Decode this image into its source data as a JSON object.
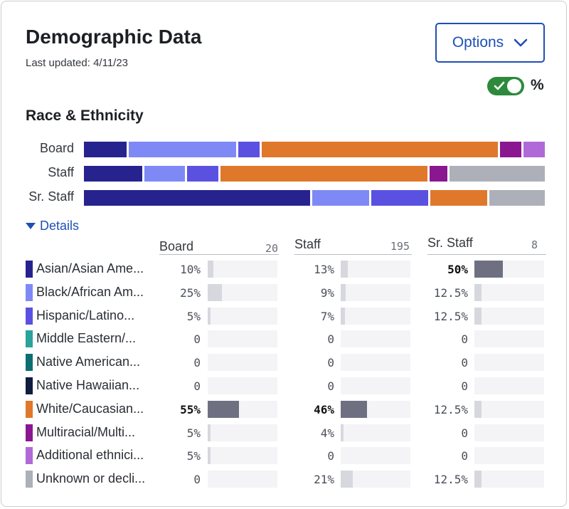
{
  "header": {
    "title": "Demographic Data",
    "last_updated": "Last updated: 4/11/23",
    "options_label": "Options",
    "percent_label": "%",
    "toggle_on": true
  },
  "section": {
    "title": "Race & Ethnicity",
    "details_label": "Details"
  },
  "colors": {
    "Asian": "#26238f",
    "Black": "#7f89f6",
    "Hispanic": "#5b51e1",
    "MiddleEastern": "#2aa39a",
    "NativeAmerican": "#0d6e72",
    "NativeHawaiian": "#101d3e",
    "White": "#e0782b",
    "Multiracial": "#8b1790",
    "Additional": "#b06ad8",
    "Unknown": "#aeb0b9",
    "accent": "#1f4fb5",
    "toggle": "#2d8a3c"
  },
  "chart_data": {
    "type": "table",
    "groups": [
      {
        "name": "Board",
        "count": "20"
      },
      {
        "name": "Staff",
        "count": "195"
      },
      {
        "name": "Sr. Staff",
        "count": "8"
      }
    ],
    "categories": [
      "Asian/Asian Ame...",
      "Black/African Am...",
      "Hispanic/Latino...",
      "Middle Eastern/...",
      "Native American...",
      "Native Hawaiian...",
      "White/Caucasian...",
      "Multiracial/Multi...",
      "Additional ethnici...",
      "Unknown or decli..."
    ],
    "color_keys": [
      "Asian",
      "Black",
      "Hispanic",
      "MiddleEastern",
      "NativeAmerican",
      "NativeHawaiian",
      "White",
      "Multiracial",
      "Additional",
      "Unknown"
    ],
    "series": [
      {
        "name": "Board",
        "values": [
          10,
          25,
          5,
          0,
          0,
          0,
          55,
          5,
          5,
          0
        ],
        "labels": [
          "10%",
          "25%",
          "5%",
          "0",
          "0",
          "0",
          "55%",
          "5%",
          "5%",
          "0"
        ]
      },
      {
        "name": "Staff",
        "values": [
          13,
          9,
          7,
          0,
          0,
          0,
          46,
          4,
          0,
          21
        ],
        "labels": [
          "13%",
          "9%",
          "7%",
          "0",
          "0",
          "0",
          "46%",
          "4%",
          "0",
          "21%"
        ]
      },
      {
        "name": "Sr. Staff",
        "values": [
          50,
          12.5,
          12.5,
          0,
          0,
          0,
          12.5,
          0,
          0,
          12.5
        ],
        "labels": [
          "50%",
          "12.5%",
          "12.5%",
          "0",
          "0",
          "0",
          "12.5%",
          "0",
          "0",
          "12.5%"
        ]
      }
    ],
    "stacked_bars": {
      "type": "bar",
      "stacked": true,
      "orientation": "horizontal",
      "categories": [
        "Board",
        "Staff",
        "Sr. Staff"
      ]
    }
  }
}
